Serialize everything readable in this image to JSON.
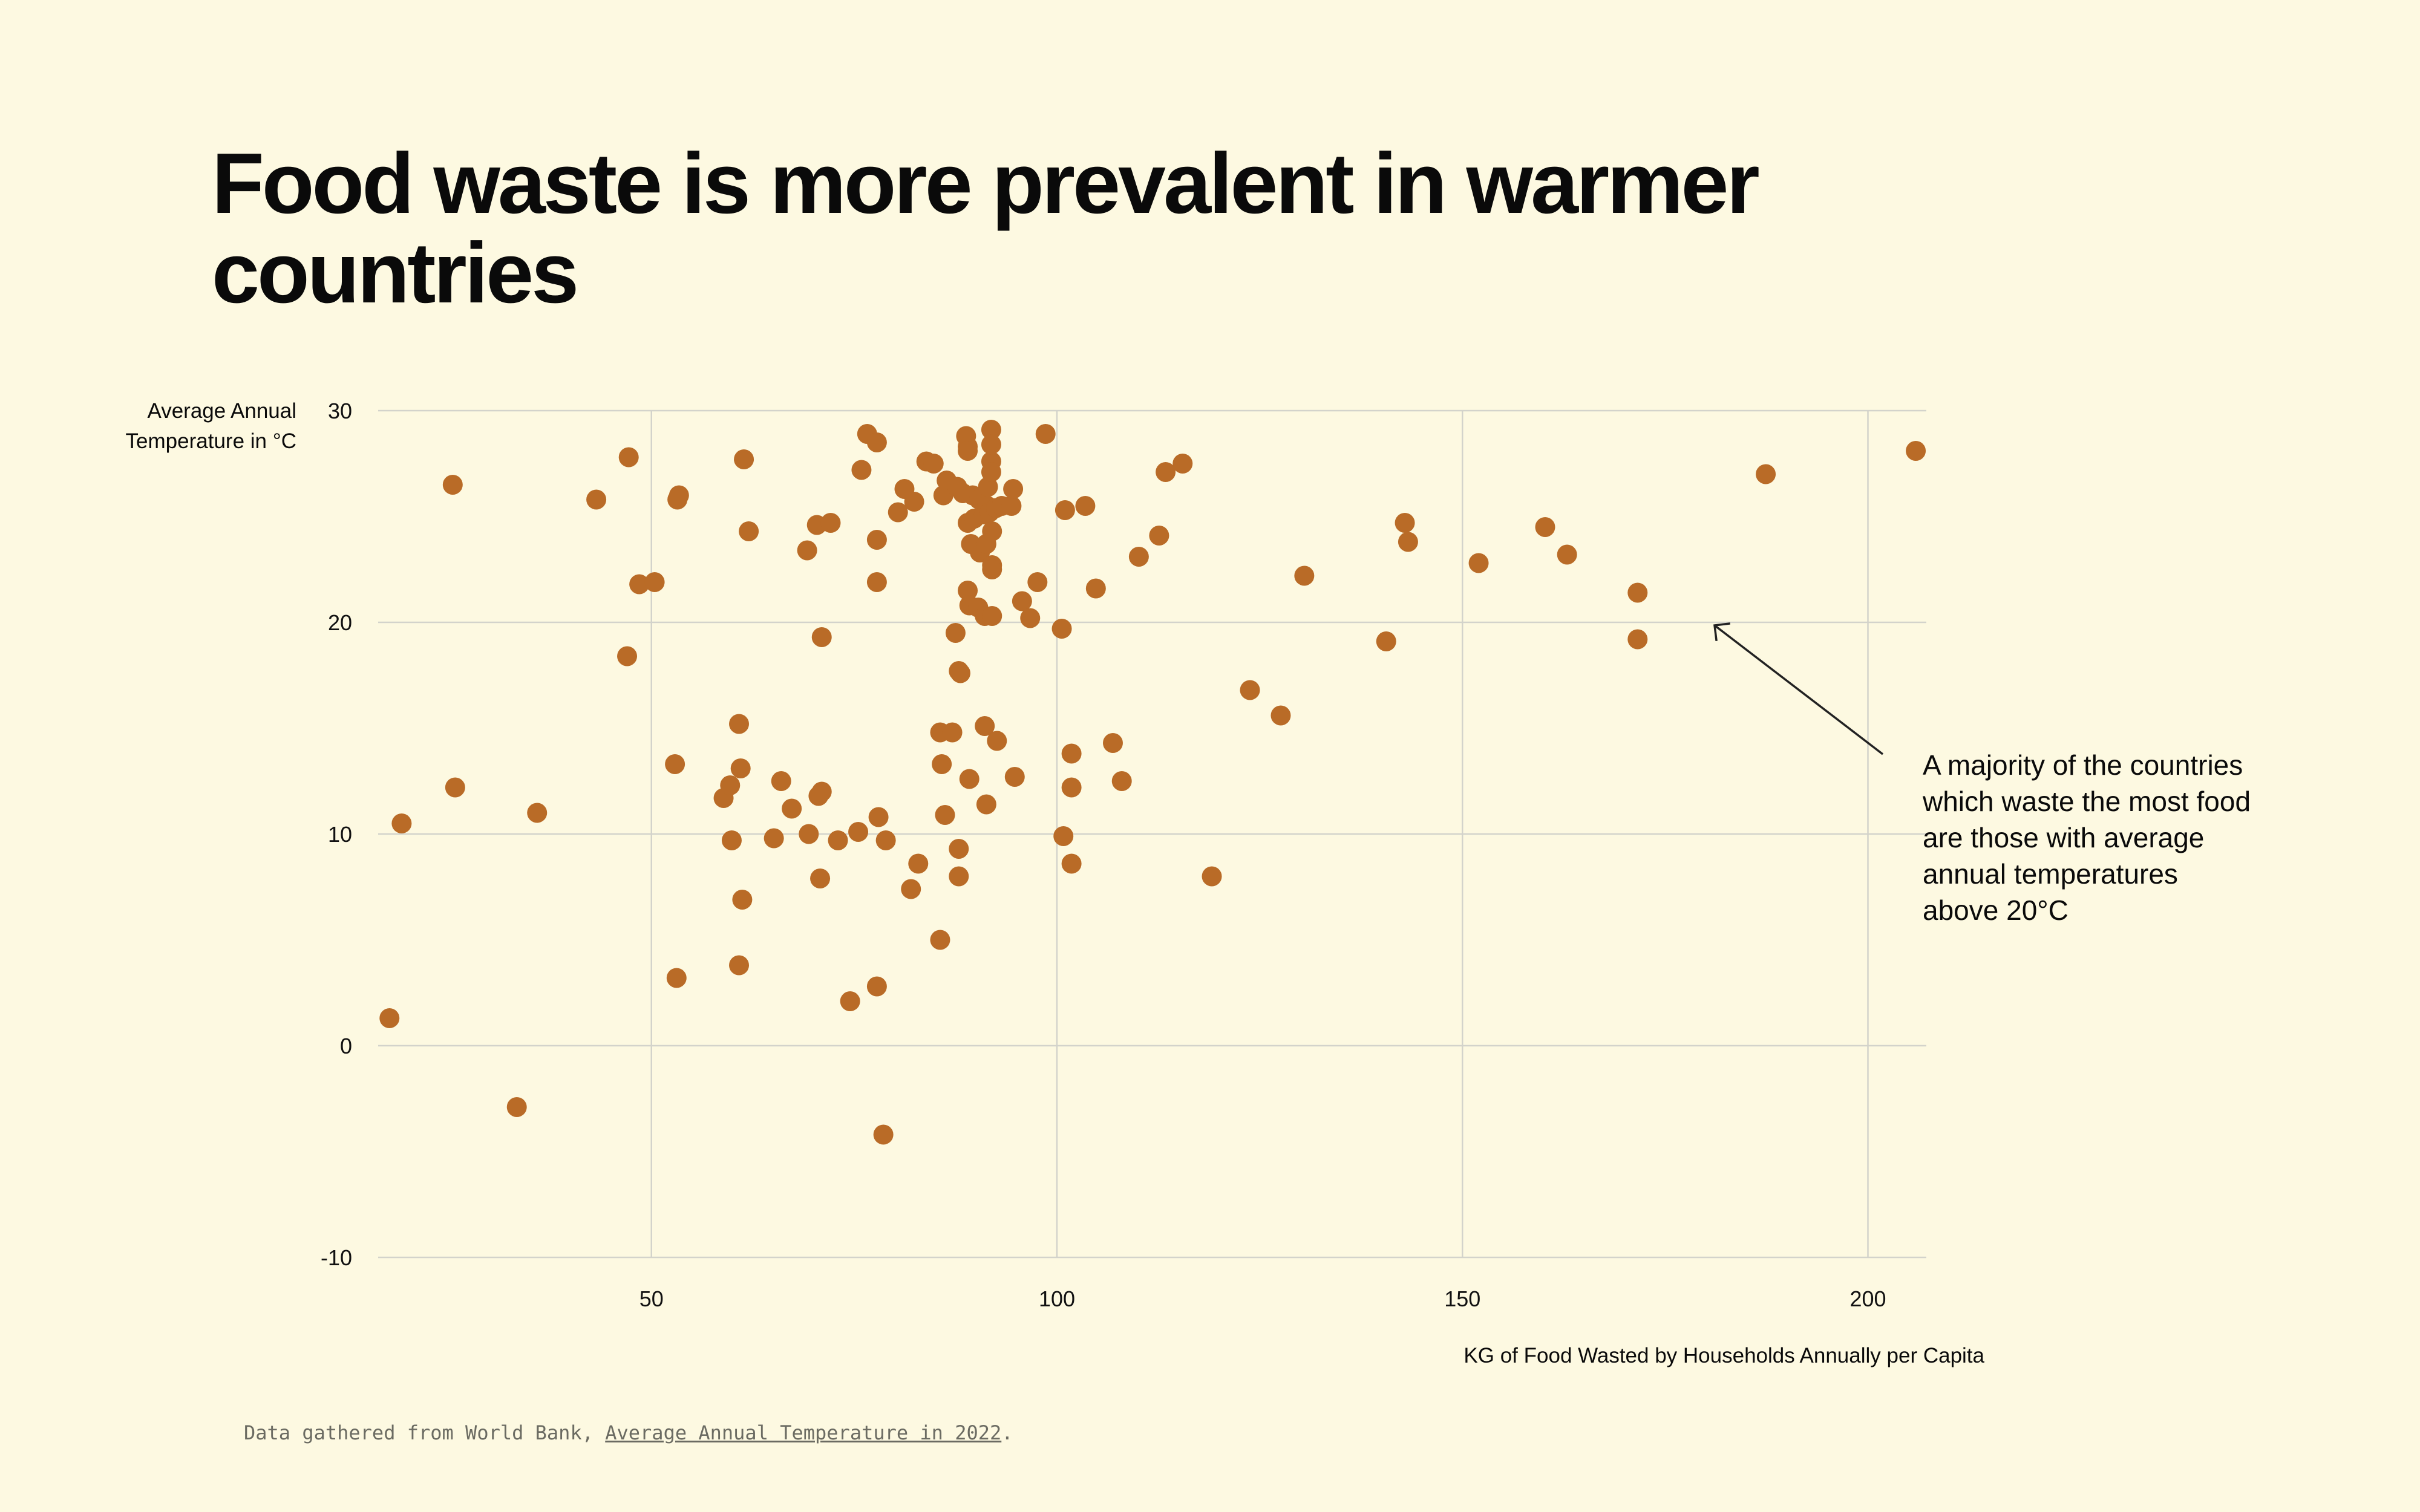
{
  "title": "Food waste is more prevalent in warmer countries",
  "footer": {
    "prefix": "Data gathered from World Bank, ",
    "link_text": "Average Annual Temperature in 2022",
    "suffix": "."
  },
  "annotation": "A majority of the countries which waste the most food are those with average annual temperatures above 20°C",
  "colors": {
    "background": "#fdf9e1",
    "point": "#b96b27",
    "grid": "#d3d3cb",
    "text": "#0a0a0a"
  },
  "chart_data": {
    "type": "scatter",
    "title": "Food waste is more prevalent in warmer countries",
    "xlabel": "KG of Food Wasted by Households Annually per Capita",
    "ylabel": "Average Annual Temperature in °C",
    "xlim": [
      16.3,
      207.2
    ],
    "ylim": [
      -10,
      30
    ],
    "xticks": [
      50,
      100,
      150,
      200
    ],
    "yticks": [
      30,
      20,
      10,
      0,
      -10
    ],
    "xtick_labels": [
      "50",
      "100",
      "150",
      "200"
    ],
    "ytick_labels": [
      "30",
      "20",
      "10",
      "0",
      "-10"
    ],
    "grid": true,
    "points": [
      [
        17.7,
        1.3
      ],
      [
        19.2,
        10.5
      ],
      [
        25.5,
        26.5
      ],
      [
        25.8,
        12.2
      ],
      [
        33.4,
        -2.9
      ],
      [
        35.9,
        11.0
      ],
      [
        43.2,
        25.8
      ],
      [
        47.2,
        27.8
      ],
      [
        47.0,
        18.4
      ],
      [
        48.5,
        21.8
      ],
      [
        50.4,
        21.9
      ],
      [
        52.9,
        13.3
      ],
      [
        53.1,
        3.2
      ],
      [
        53.2,
        25.8
      ],
      [
        53.4,
        26.0
      ],
      [
        58.9,
        11.7
      ],
      [
        59.7,
        12.3
      ],
      [
        59.9,
        9.7
      ],
      [
        60.8,
        15.2
      ],
      [
        60.8,
        3.8
      ],
      [
        61.0,
        13.1
      ],
      [
        61.2,
        6.9
      ],
      [
        61.4,
        27.7
      ],
      [
        62.0,
        24.3
      ],
      [
        65.1,
        9.8
      ],
      [
        66.0,
        12.5
      ],
      [
        67.3,
        11.2
      ],
      [
        69.2,
        23.4
      ],
      [
        69.4,
        10.0
      ],
      [
        70.4,
        24.6
      ],
      [
        70.6,
        11.8
      ],
      [
        71.0,
        12.0
      ],
      [
        70.8,
        7.9
      ],
      [
        71.0,
        19.3
      ],
      [
        72.1,
        24.7
      ],
      [
        73.0,
        9.7
      ],
      [
        74.5,
        2.1
      ],
      [
        75.5,
        10.1
      ],
      [
        75.9,
        27.2
      ],
      [
        76.6,
        28.9
      ],
      [
        77.8,
        28.5
      ],
      [
        77.8,
        23.9
      ],
      [
        77.8,
        21.9
      ],
      [
        78.0,
        10.8
      ],
      [
        77.8,
        2.8
      ],
      [
        78.6,
        -4.2
      ],
      [
        78.9,
        9.7
      ],
      [
        80.4,
        25.2
      ],
      [
        81.2,
        26.3
      ],
      [
        82.0,
        7.4
      ],
      [
        82.4,
        25.7
      ],
      [
        82.9,
        8.6
      ],
      [
        83.9,
        27.6
      ],
      [
        84.8,
        27.5
      ],
      [
        85.6,
        5.0
      ],
      [
        85.6,
        14.8
      ],
      [
        85.8,
        13.3
      ],
      [
        86.0,
        26.0
      ],
      [
        86.2,
        10.9
      ],
      [
        86.4,
        26.7
      ],
      [
        87.1,
        14.8
      ],
      [
        87.5,
        19.5
      ],
      [
        87.7,
        26.4
      ],
      [
        87.9,
        17.7
      ],
      [
        88.1,
        17.6
      ],
      [
        87.9,
        9.3
      ],
      [
        87.9,
        8.0
      ],
      [
        88.4,
        26.1
      ],
      [
        88.8,
        28.8
      ],
      [
        89.0,
        28.3
      ],
      [
        89.0,
        28.1
      ],
      [
        89.0,
        21.5
      ],
      [
        89.0,
        24.7
      ],
      [
        89.2,
        20.8
      ],
      [
        89.2,
        12.6
      ],
      [
        89.4,
        23.7
      ],
      [
        89.6,
        26.0
      ],
      [
        89.8,
        24.9
      ],
      [
        90.4,
        25.8
      ],
      [
        90.3,
        20.7
      ],
      [
        90.5,
        23.3
      ],
      [
        91.0,
        25.1
      ],
      [
        91.4,
        25.5
      ],
      [
        91.1,
        15.1
      ],
      [
        91.1,
        20.3
      ],
      [
        91.3,
        11.4
      ],
      [
        91.3,
        23.7
      ],
      [
        91.5,
        26.4
      ],
      [
        91.7,
        25.2
      ],
      [
        91.9,
        29.1
      ],
      [
        91.9,
        27.6
      ],
      [
        91.9,
        27.1
      ],
      [
        91.9,
        28.4
      ],
      [
        92.0,
        24.3
      ],
      [
        92.0,
        22.7
      ],
      [
        92.0,
        22.5
      ],
      [
        92.0,
        20.3
      ],
      [
        92.5,
        25.4
      ],
      [
        92.6,
        14.4
      ],
      [
        93.2,
        25.5
      ],
      [
        94.4,
        25.5
      ],
      [
        94.6,
        26.3
      ],
      [
        94.8,
        12.7
      ],
      [
        95.7,
        21.0
      ],
      [
        96.7,
        20.2
      ],
      [
        97.6,
        21.9
      ],
      [
        98.6,
        28.9
      ],
      [
        100.6,
        19.7
      ],
      [
        100.8,
        9.9
      ],
      [
        101.0,
        25.3
      ],
      [
        101.8,
        13.8
      ],
      [
        101.8,
        12.2
      ],
      [
        101.8,
        8.6
      ],
      [
        103.5,
        25.5
      ],
      [
        104.8,
        21.6
      ],
      [
        106.9,
        14.3
      ],
      [
        108.0,
        12.5
      ],
      [
        110.1,
        23.1
      ],
      [
        112.6,
        24.1
      ],
      [
        113.4,
        27.1
      ],
      [
        115.5,
        27.5
      ],
      [
        119.1,
        8.0
      ],
      [
        123.8,
        16.8
      ],
      [
        127.6,
        15.6
      ],
      [
        130.5,
        22.2
      ],
      [
        140.6,
        19.1
      ],
      [
        142.9,
        24.7
      ],
      [
        143.3,
        23.8
      ],
      [
        152.0,
        22.8
      ],
      [
        160.2,
        24.5
      ],
      [
        162.9,
        23.2
      ],
      [
        171.6,
        21.4
      ],
      [
        171.6,
        19.2
      ],
      [
        187.4,
        27.0
      ],
      [
        205.9,
        28.1
      ]
    ],
    "annotation": "A majority of the countries which waste the most food are those with average annual temperatures above 20°C"
  }
}
